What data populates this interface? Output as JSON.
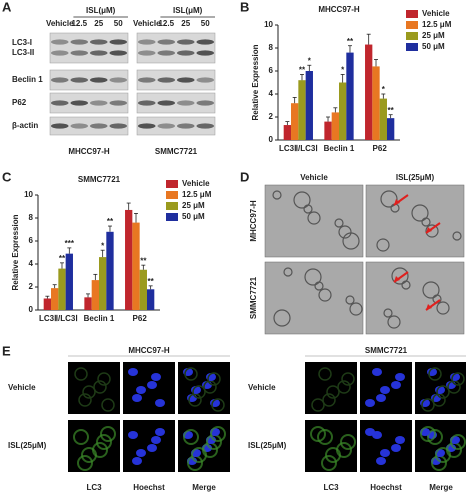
{
  "figure": {
    "panel_labels": [
      "A",
      "B",
      "C",
      "D",
      "E"
    ]
  },
  "blot": {
    "group_header": "ISL(μM)",
    "lanes": [
      "Vehicle",
      "12.5",
      "25",
      "50"
    ],
    "rows": [
      "LC3-I",
      "LC3-II",
      "Beclin 1",
      "P62",
      "β-actin"
    ],
    "cell_lines": [
      "MHCC97-H",
      "SMMC7721"
    ]
  },
  "chart_data": [
    {
      "type": "bar",
      "title": "MHCC97-H",
      "y_label": "Relative Expression",
      "categories": [
        "LC3Ⅱ/LC3Ⅰ",
        "Beclin 1",
        "P62"
      ],
      "ylim": [
        0,
        10
      ],
      "yticks": [
        0,
        2,
        4,
        6,
        8,
        10
      ],
      "legend": "right",
      "series": [
        {
          "name": "Vehicle",
          "color": "#c0262d",
          "values": [
            1.3,
            1.6,
            8.3
          ],
          "errors": [
            0.3,
            0.4,
            0.9
          ],
          "significance": [
            null,
            null,
            null
          ]
        },
        {
          "name": "12.5 μM",
          "color": "#e87722",
          "values": [
            3.2,
            2.4,
            6.4
          ],
          "errors": [
            0.5,
            0.4,
            0.6
          ],
          "significance": [
            null,
            null,
            null
          ]
        },
        {
          "name": "25 μM",
          "color": "#9a9a1e",
          "values": [
            5.2,
            5.0,
            3.6
          ],
          "errors": [
            0.5,
            0.7,
            0.4
          ],
          "significance": [
            "**",
            "*",
            "*"
          ]
        },
        {
          "name": "50 μM",
          "color": "#1f2e9e",
          "values": [
            6.0,
            7.6,
            1.9
          ],
          "errors": [
            0.5,
            0.6,
            0.3
          ],
          "significance": [
            "*",
            "**",
            "**"
          ]
        }
      ]
    },
    {
      "type": "bar",
      "title": "SMMC7721",
      "y_label": "Relative Expression",
      "categories": [
        "LC3Ⅱ/LC3Ⅰ",
        "Beclin 1",
        "P62"
      ],
      "ylim": [
        0,
        10
      ],
      "yticks": [
        0,
        2,
        4,
        6,
        8,
        10
      ],
      "legend": "right",
      "series": [
        {
          "name": "Vehicle",
          "color": "#c0262d",
          "values": [
            1.0,
            1.1,
            8.7
          ],
          "errors": [
            0.2,
            0.3,
            0.6
          ],
          "significance": [
            null,
            null,
            null
          ]
        },
        {
          "name": "12.5 μM",
          "color": "#e87722",
          "values": [
            1.9,
            2.6,
            7.6
          ],
          "errors": [
            0.3,
            0.5,
            0.8
          ],
          "significance": [
            null,
            null,
            null
          ]
        },
        {
          "name": "25 μM",
          "color": "#9a9a1e",
          "values": [
            3.6,
            4.6,
            3.5
          ],
          "errors": [
            0.5,
            0.6,
            0.4
          ],
          "significance": [
            "**",
            "*",
            "**"
          ]
        },
        {
          "name": "50 μM",
          "color": "#1f2e9e",
          "values": [
            4.9,
            6.8,
            1.8
          ],
          "errors": [
            0.5,
            0.5,
            0.3
          ],
          "significance": [
            "***",
            "**",
            "**"
          ]
        }
      ]
    }
  ],
  "tem": {
    "columns": [
      "Vehicle",
      "ISL(25μM)"
    ],
    "rows": [
      "MHCC97-H",
      "SMMC7721"
    ]
  },
  "immunofluorescence": {
    "groups": [
      "MHCC97-H",
      "SMMC7721"
    ],
    "rows": [
      "Vehicle",
      "ISL(25μM)"
    ],
    "columns": [
      "LC3",
      "Hoechst",
      "Merge"
    ]
  }
}
